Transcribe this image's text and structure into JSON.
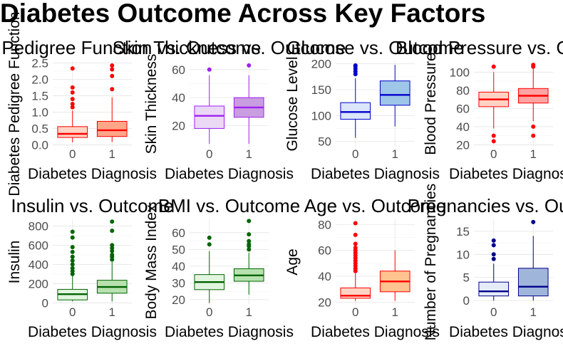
{
  "figure": {
    "title": "Diabetes Outcome Across Key Factors"
  },
  "chart_data": [
    {
      "type": "boxplot",
      "title": "Diabetes Pedigree Function vs. Outcome",
      "xlabel": "Diabetes Diagnosis",
      "ylabel": "Diabetes Pedigree Function",
      "categories": [
        "0",
        "1"
      ],
      "yticks": [
        0.0,
        0.5,
        1.0,
        1.5,
        2.0,
        2.5
      ],
      "ytick_labels": [
        "0.0",
        "0.5",
        "1.0",
        "1.5",
        "2.0",
        "2.5"
      ],
      "ylim": [
        -0.05,
        2.55
      ],
      "stroke_color": "#ff0000",
      "fill_colors": [
        "#ffd3c4",
        "#ffa688"
      ],
      "boxes": [
        {
          "q1": 0.23,
          "median": 0.34,
          "q3": 0.56,
          "whisker_low": 0.08,
          "whisker_high": 1.05,
          "outliers": [
            1.15,
            1.25,
            1.4,
            1.6,
            1.75,
            2.33
          ]
        },
        {
          "q1": 0.26,
          "median": 0.45,
          "q3": 0.72,
          "whisker_low": 0.09,
          "whisker_high": 1.45,
          "outliers": [
            1.7,
            2.1,
            2.3,
            2.42
          ]
        }
      ]
    },
    {
      "type": "boxplot",
      "title": "Skin Thickness vs. Outcome",
      "xlabel": "Diabetes Diagnosis",
      "ylabel": "Skin Thickness",
      "categories": [
        "0",
        "1"
      ],
      "yticks": [
        20,
        40,
        60
      ],
      "ytick_labels": [
        "20",
        "40",
        "60"
      ],
      "ylim": [
        5,
        66
      ],
      "stroke_color": "#a020f0",
      "fill_colors": [
        "#ead8f5",
        "#c99ee0"
      ],
      "boxes": [
        {
          "q1": 18,
          "median": 27,
          "q3": 34,
          "whisker_low": 7,
          "whisker_high": 56,
          "outliers": [
            60
          ]
        },
        {
          "q1": 26,
          "median": 33,
          "q3": 40,
          "whisker_low": 7,
          "whisker_high": 56,
          "outliers": [
            63
          ]
        }
      ]
    },
    {
      "type": "boxplot",
      "title": "Glucose vs. Outcome",
      "xlabel": "Diabetes Diagnosis",
      "ylabel": "Glucose Level",
      "categories": [
        "0",
        "1"
      ],
      "yticks": [
        50,
        100,
        150,
        200
      ],
      "ytick_labels": [
        "50",
        "100",
        "150",
        "200"
      ],
      "ylim": [
        40,
        205
      ],
      "stroke_color": "#0000cd",
      "fill_colors": [
        "#dbe6fb",
        "#9ec6e8"
      ],
      "boxes": [
        {
          "q1": 93,
          "median": 107,
          "q3": 125,
          "whisker_low": 57,
          "whisker_high": 172,
          "outliers": [
            180,
            185,
            190,
            195,
            197
          ]
        },
        {
          "q1": 120,
          "median": 140,
          "q3": 167,
          "whisker_low": 79,
          "whisker_high": 198,
          "outliers": []
        }
      ]
    },
    {
      "type": "boxplot",
      "title": "Blood Pressure vs. Outcome",
      "xlabel": "Diabetes Diagnosis",
      "ylabel": "Blood Pressure",
      "categories": [
        "0",
        "1"
      ],
      "yticks": [
        20,
        40,
        60,
        80,
        100
      ],
      "ytick_labels": [
        "20",
        "40",
        "60",
        "80",
        "100"
      ],
      "ylim": [
        18,
        112
      ],
      "stroke_color": "#ff0000",
      "fill_colors": [
        "#ffd3c4",
        "#ffa3a3"
      ],
      "boxes": [
        {
          "q1": 62,
          "median": 70,
          "q3": 78,
          "whisker_low": 38,
          "whisker_high": 100,
          "outliers": [
            24,
            30,
            106
          ]
        },
        {
          "q1": 66,
          "median": 74,
          "q3": 82,
          "whisker_low": 46,
          "whisker_high": 104,
          "outliers": [
            30,
            40,
            106,
            108
          ]
        }
      ]
    },
    {
      "type": "boxplot",
      "title": "Insulin vs. Outcome",
      "xlabel": "Diabetes Diagnosis",
      "ylabel": "Insulin",
      "categories": [
        "0",
        "1"
      ],
      "yticks": [
        0,
        200,
        400,
        600,
        800
      ],
      "ytick_labels": [
        "0",
        "200",
        "400",
        "600",
        "800"
      ],
      "ylim": [
        -20,
        870
      ],
      "stroke_color": "#006400",
      "fill_colors": [
        "#e2f5df",
        "#b7e2b0"
      ],
      "boxes": [
        {
          "q1": 30,
          "median": 90,
          "q3": 140,
          "whisker_low": 15,
          "whisker_high": 280,
          "outliers": [
            300,
            330,
            360,
            400,
            440,
            480,
            530,
            580,
            680,
            740
          ]
        },
        {
          "q1": 100,
          "median": 165,
          "q3": 235,
          "whisker_low": 14,
          "whisker_high": 425,
          "outliers": [
            450,
            480,
            500,
            540,
            570,
            600,
            750,
            846
          ]
        }
      ]
    },
    {
      "type": "boxplot",
      "title": "BMI vs. Outcome",
      "xlabel": "Diabetes Diagnosis",
      "ylabel": "Body Mass Index",
      "categories": [
        "0",
        "1"
      ],
      "yticks": [
        20,
        30,
        40,
        50,
        60
      ],
      "ytick_labels": [
        "20",
        "30",
        "40",
        "50",
        "60"
      ],
      "ylim": [
        17,
        68
      ],
      "stroke_color": "#006400",
      "fill_colors": [
        "#e2f5df",
        "#b7e2b0"
      ],
      "boxes": [
        {
          "q1": 26,
          "median": 30.5,
          "q3": 35,
          "whisker_low": 18,
          "whisker_high": 49,
          "outliers": [
            53,
            57
          ]
        },
        {
          "q1": 31,
          "median": 34.5,
          "q3": 38.5,
          "whisker_low": 23,
          "whisker_high": 48,
          "outliers": [
            50,
            52,
            53,
            55,
            59,
            67
          ]
        }
      ]
    },
    {
      "type": "boxplot",
      "title": "Age vs. Outcome",
      "xlabel": "Diabetes Diagnosis",
      "ylabel": "Age",
      "categories": [
        "0",
        "1"
      ],
      "yticks": [
        20,
        40,
        60,
        80
      ],
      "ytick_labels": [
        "20",
        "40",
        "60",
        "80"
      ],
      "ylim": [
        18,
        84
      ],
      "stroke_color": "#ff0000",
      "fill_colors": [
        "#ffd3c4",
        "#ffc38f"
      ],
      "boxes": [
        {
          "q1": 23,
          "median": 25,
          "q3": 31,
          "whisker_low": 21,
          "whisker_high": 43,
          "outliers": [
            44,
            46,
            48,
            50,
            52,
            54,
            56,
            58,
            60,
            62,
            65,
            72,
            81
          ]
        },
        {
          "q1": 28,
          "median": 36,
          "q3": 44,
          "whisker_low": 21,
          "whisker_high": 60,
          "outliers": []
        }
      ]
    },
    {
      "type": "boxplot",
      "title": "Pregnancies vs. Outcome",
      "xlabel": "Diabetes Diagnosis",
      "ylabel": "Number of Pregnancies",
      "categories": [
        "0",
        "1"
      ],
      "yticks": [
        0,
        5,
        10,
        15
      ],
      "ytick_labels": [
        "0",
        "5",
        "10",
        "15"
      ],
      "ylim": [
        -0.9,
        17.6
      ],
      "stroke_color": "#00008b",
      "fill_colors": [
        "#e5ebf7",
        "#9fb5da"
      ],
      "boxes": [
        {
          "q1": 1,
          "median": 2,
          "q3": 4,
          "whisker_low": 0,
          "whisker_high": 8,
          "outliers": [
            9,
            10,
            12,
            13
          ]
        },
        {
          "q1": 1,
          "median": 3,
          "q3": 7,
          "whisker_low": 0,
          "whisker_high": 14,
          "outliers": [
            17
          ]
        }
      ]
    }
  ]
}
